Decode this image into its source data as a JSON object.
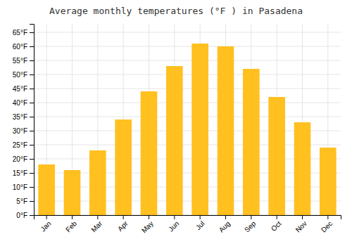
{
  "chart_data": {
    "type": "bar",
    "title": "Average monthly temperatures (°F ) in Pasadena",
    "categories": [
      "Jan",
      "Feb",
      "Mar",
      "Apr",
      "May",
      "Jun",
      "Jul",
      "Aug",
      "Sep",
      "Oct",
      "Nov",
      "Dec"
    ],
    "values": [
      18,
      16,
      23,
      34,
      44,
      53,
      61,
      60,
      52,
      42,
      33,
      24
    ],
    "color": "#FFC020",
    "ylim": [
      0,
      68
    ],
    "yticks": [
      {
        "value": 0,
        "label": "0°F"
      },
      {
        "value": 5,
        "label": "5°F"
      },
      {
        "value": 10,
        "label": "10°F"
      },
      {
        "value": 15,
        "label": "15°F"
      },
      {
        "value": 20,
        "label": "20°F"
      },
      {
        "value": 25,
        "label": "25°F"
      },
      {
        "value": 30,
        "label": "30°F"
      },
      {
        "value": 35,
        "label": "35°F"
      },
      {
        "value": 40,
        "label": "40°F"
      },
      {
        "value": 45,
        "label": "45°F"
      },
      {
        "value": 50,
        "label": "50°F"
      },
      {
        "value": 55,
        "label": "55°F"
      },
      {
        "value": 60,
        "label": "60°F"
      },
      {
        "value": 65,
        "label": "65°F"
      }
    ],
    "grid": true
  }
}
